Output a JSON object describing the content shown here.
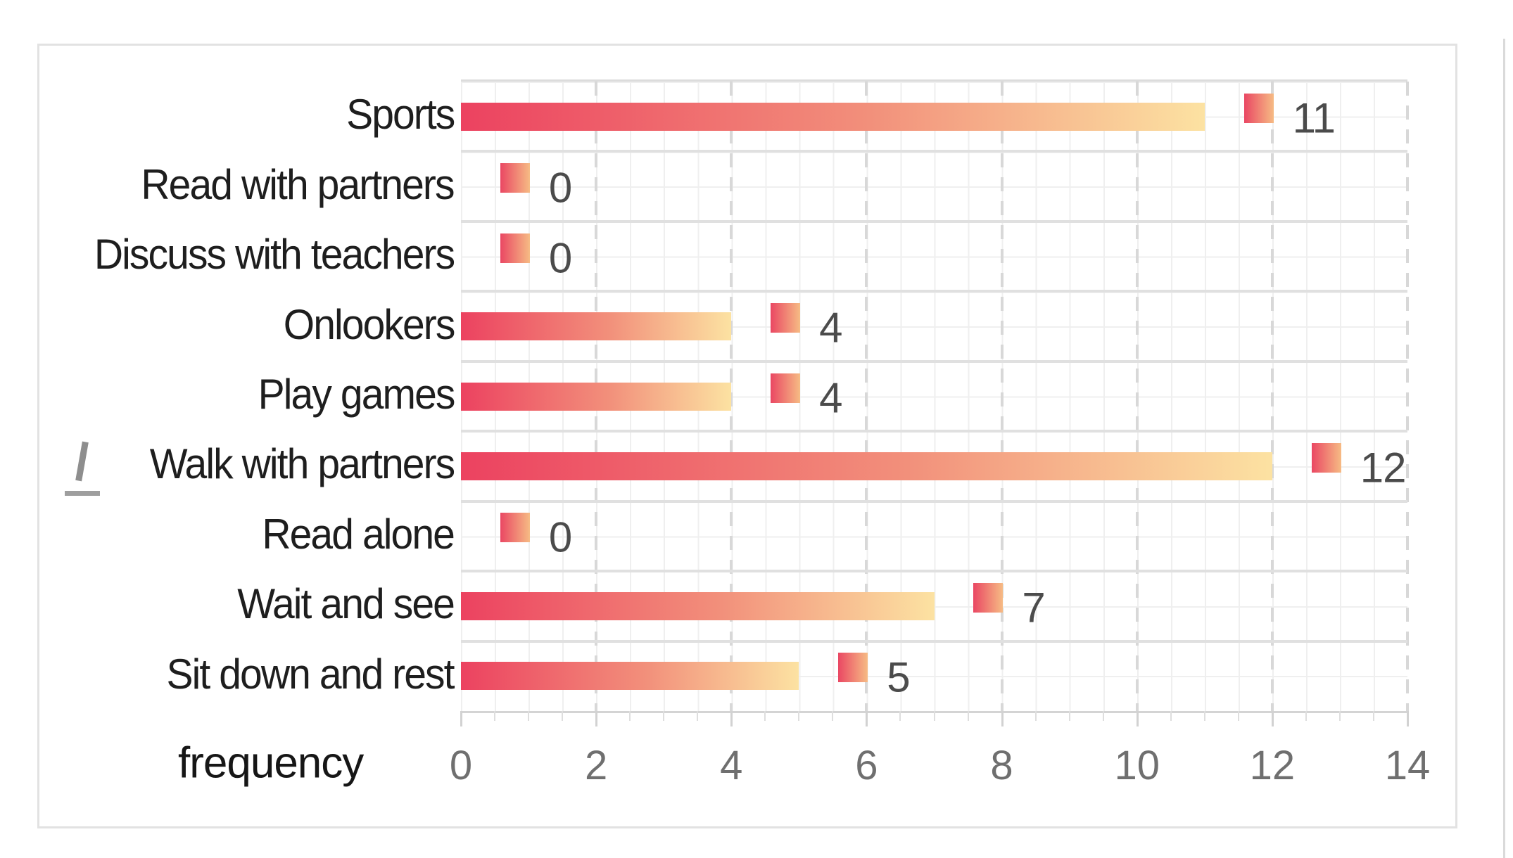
{
  "chart_data": {
    "type": "bar",
    "orientation": "horizontal",
    "title": "",
    "xlabel": "frequency",
    "ylabel": "",
    "categories": [
      "Sports",
      "Read with partners",
      "Discuss with teachers",
      "Onlookers",
      "Play games",
      "Walk with partners",
      "Read alone",
      "Wait and see",
      "Sit down and rest"
    ],
    "values": [
      11,
      0,
      0,
      4,
      4,
      12,
      0,
      7,
      5
    ],
    "data_labels": [
      "11",
      "0",
      "0",
      "4",
      "4",
      "12",
      "0",
      "7",
      "5"
    ],
    "x_ticks": [
      "0",
      "2",
      "4",
      "6",
      "8",
      "10",
      "12",
      "14"
    ],
    "x_tick_values": [
      0,
      2,
      4,
      6,
      8,
      10,
      12,
      14
    ],
    "xlim": [
      0,
      14
    ],
    "legend": false,
    "grid": {
      "minor_squares": true,
      "dashed_major_verticals": true,
      "band_separators": true
    }
  },
  "colors": {
    "bar_gradient_start": "#ec4260",
    "bar_gradient_mid": "#f2907b",
    "bar_gradient_end": "#fce2a2",
    "marker_gradient_start": "#ea4763",
    "marker_gradient_end": "#f6bb84",
    "value_label": "#4b4b4b",
    "category_label": "#1e1e1e",
    "tick_label": "#6f6f6f",
    "axis_label": "#161616",
    "grid_minor": "#efefef",
    "grid_major_dashed": "#d8d8d8",
    "band_separator": "#e0e0e0",
    "panel_border": "#e2e2e2"
  }
}
